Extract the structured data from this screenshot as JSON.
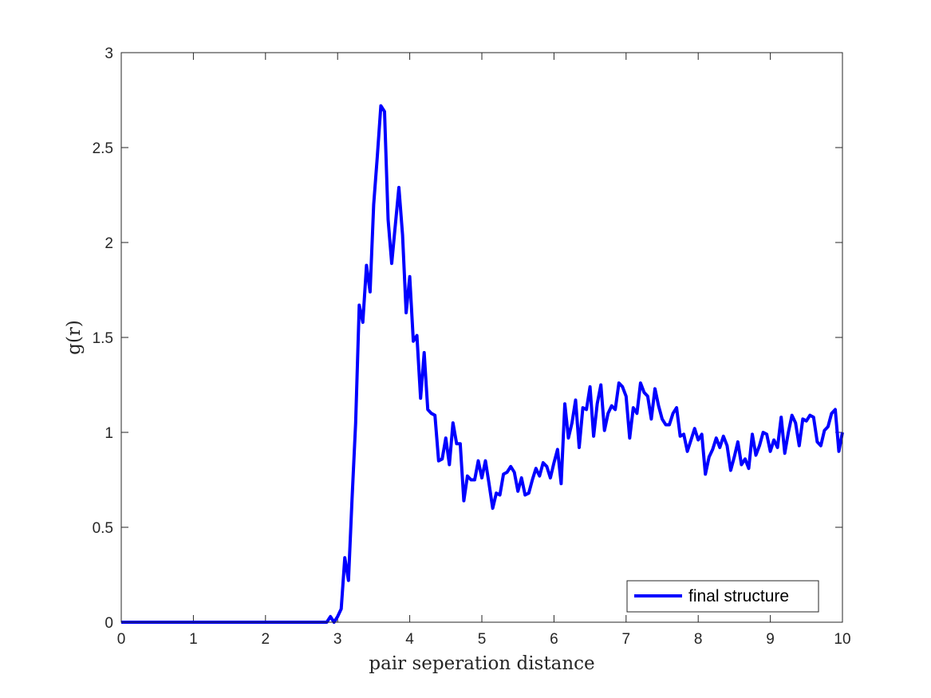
{
  "chart_data": {
    "type": "line",
    "title": "",
    "xlabel": "pair seperation distance",
    "ylabel": "g(r)",
    "xlim": [
      0,
      10
    ],
    "ylim": [
      0,
      3
    ],
    "xticks": [
      0,
      1,
      2,
      3,
      4,
      5,
      6,
      7,
      8,
      9,
      10
    ],
    "xtick_labels": [
      "0",
      "1",
      "2",
      "3",
      "4",
      "5",
      "6",
      "7",
      "8",
      "9",
      "10"
    ],
    "yticks": [
      0,
      0.5,
      1,
      1.5,
      2,
      2.5,
      3
    ],
    "ytick_labels": [
      "0",
      "0.5",
      "1",
      "1.5",
      "2",
      "2.5",
      "3"
    ],
    "grid": false,
    "box": true,
    "legend": {
      "position": "bottom-right",
      "entries": [
        "final structure"
      ]
    },
    "series": [
      {
        "name": "final structure",
        "color": "#0000ff",
        "x": [
          0,
          0.5,
          1,
          1.5,
          2,
          2.5,
          2.8,
          2.85,
          2.9,
          2.95,
          3.0,
          3.05,
          3.1,
          3.15,
          3.2,
          3.25,
          3.3,
          3.35,
          3.4,
          3.45,
          3.5,
          3.55,
          3.6,
          3.65,
          3.7,
          3.75,
          3.8,
          3.85,
          3.9,
          3.95,
          4.0,
          4.05,
          4.1,
          4.15,
          4.2,
          4.25,
          4.3,
          4.35,
          4.4,
          4.45,
          4.5,
          4.55,
          4.6,
          4.65,
          4.7,
          4.75,
          4.8,
          4.85,
          4.9,
          4.95,
          5.0,
          5.05,
          5.1,
          5.15,
          5.2,
          5.25,
          5.3,
          5.35,
          5.4,
          5.45,
          5.5,
          5.55,
          5.6,
          5.65,
          5.7,
          5.75,
          5.8,
          5.85,
          5.9,
          5.95,
          6.0,
          6.05,
          6.1,
          6.15,
          6.2,
          6.25,
          6.3,
          6.35,
          6.4,
          6.45,
          6.5,
          6.55,
          6.6,
          6.65,
          6.7,
          6.75,
          6.8,
          6.85,
          6.9,
          6.95,
          7.0,
          7.05,
          7.1,
          7.15,
          7.2,
          7.25,
          7.3,
          7.35,
          7.4,
          7.45,
          7.5,
          7.55,
          7.6,
          7.65,
          7.7,
          7.75,
          7.8,
          7.85,
          7.9,
          7.95,
          8.0,
          8.05,
          8.1,
          8.15,
          8.2,
          8.25,
          8.3,
          8.35,
          8.4,
          8.45,
          8.5,
          8.55,
          8.6,
          8.65,
          8.7,
          8.75,
          8.8,
          8.85,
          8.9,
          8.95,
          9.0,
          9.05,
          9.1,
          9.15,
          9.2,
          9.25,
          9.3,
          9.35,
          9.4,
          9.45,
          9.5,
          9.55,
          9.6,
          9.65,
          9.7,
          9.75,
          9.8,
          9.85,
          9.9,
          9.95,
          10.0
        ],
        "y": [
          0,
          0,
          0,
          0,
          0,
          0,
          0,
          0,
          0.03,
          0,
          0.03,
          0.07,
          0.34,
          0.22,
          0.65,
          1.05,
          1.67,
          1.58,
          1.88,
          1.74,
          2.2,
          2.45,
          2.72,
          2.69,
          2.12,
          1.89,
          2.09,
          2.29,
          2.04,
          1.63,
          1.82,
          1.48,
          1.51,
          1.18,
          1.42,
          1.12,
          1.1,
          1.09,
          0.85,
          0.86,
          0.97,
          0.83,
          1.05,
          0.94,
          0.94,
          0.64,
          0.77,
          0.75,
          0.75,
          0.85,
          0.76,
          0.85,
          0.73,
          0.6,
          0.68,
          0.67,
          0.78,
          0.79,
          0.82,
          0.79,
          0.69,
          0.76,
          0.67,
          0.68,
          0.75,
          0.81,
          0.77,
          0.84,
          0.82,
          0.76,
          0.84,
          0.91,
          0.73,
          1.15,
          0.97,
          1.05,
          1.17,
          0.92,
          1.13,
          1.12,
          1.24,
          0.98,
          1.15,
          1.25,
          1.01,
          1.1,
          1.14,
          1.12,
          1.26,
          1.24,
          1.19,
          0.97,
          1.13,
          1.1,
          1.26,
          1.21,
          1.19,
          1.07,
          1.23,
          1.14,
          1.07,
          1.04,
          1.04,
          1.1,
          1.13,
          0.98,
          0.99,
          0.9,
          0.96,
          1.02,
          0.96,
          0.99,
          0.78,
          0.87,
          0.91,
          0.97,
          0.92,
          0.98,
          0.93,
          0.8,
          0.87,
          0.95,
          0.83,
          0.86,
          0.81,
          0.99,
          0.88,
          0.93,
          1.0,
          0.99,
          0.9,
          0.96,
          0.92,
          1.08,
          0.89,
          1.0,
          1.09,
          1.05,
          0.93,
          1.07,
          1.06,
          1.09,
          1.08,
          0.95,
          0.93,
          1.01,
          1.03,
          1.1,
          1.12,
          0.9,
          1.0
        ]
      }
    ]
  }
}
